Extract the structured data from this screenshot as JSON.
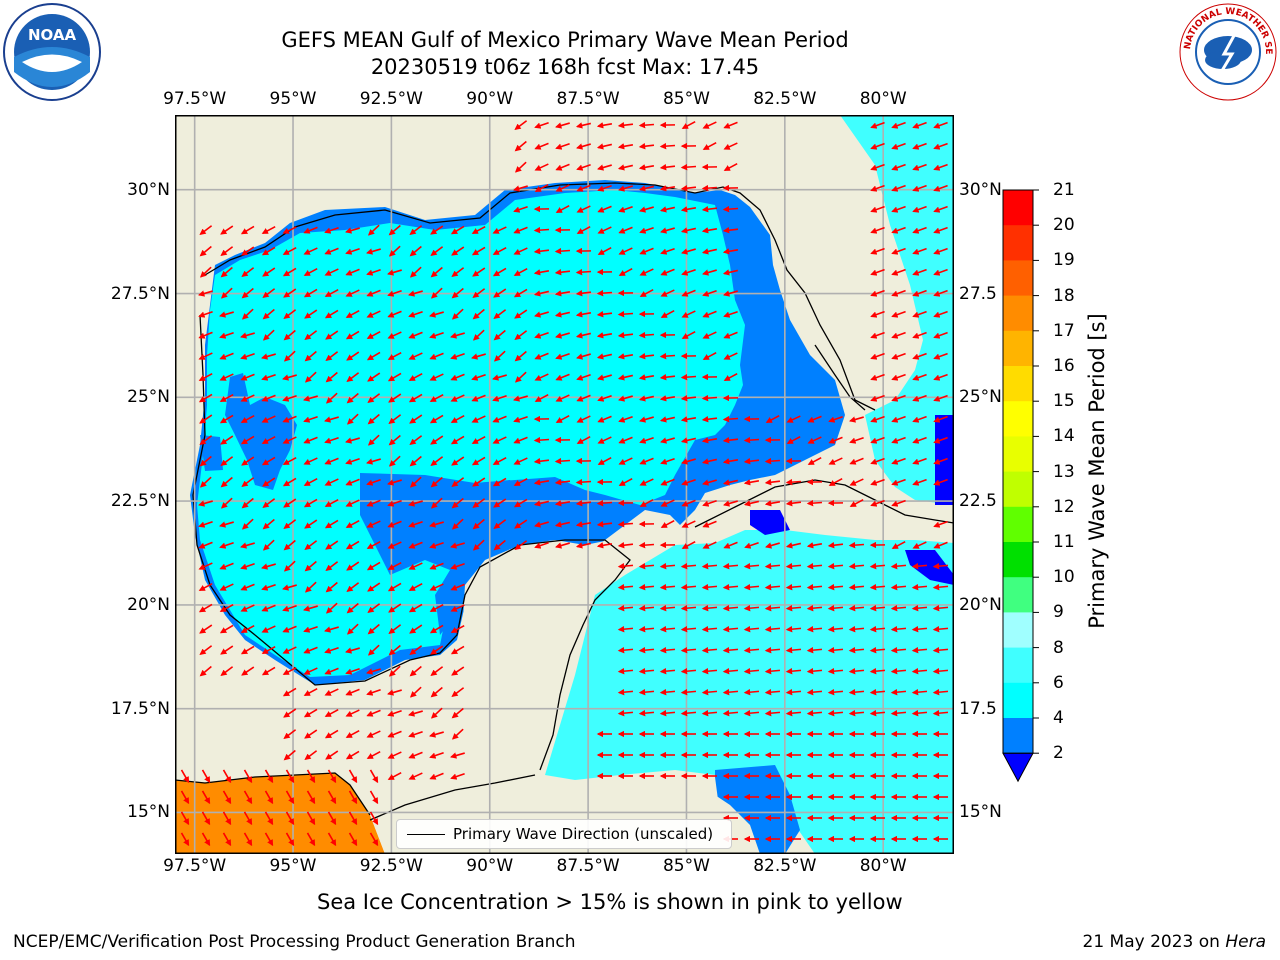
{
  "title_line1": "GEFS MEAN Gulf of Mexico Primary Wave Mean Period",
  "title_line2": "20230519 t06z 168h fcst   Max: 17.45",
  "lon_labels": [
    "97.5°W",
    "95°W",
    "92.5°W",
    "90°W",
    "87.5°W",
    "85°W",
    "82.5°W",
    "80°W"
  ],
  "lon_values": [
    -97.5,
    -95,
    -92.5,
    -90,
    -87.5,
    -85,
    -82.5,
    -80
  ],
  "lat_labels_left": [
    "30°N",
    "27.5°N",
    "25°N",
    "22.5°N",
    "20°N",
    "17.5°N",
    "15°N"
  ],
  "lat_labels_right": [
    "30°N",
    "27.5",
    "25°N",
    "22.5",
    "20°N",
    "17.5",
    "15°N"
  ],
  "lat_values": [
    30,
    27.5,
    25,
    22.5,
    20,
    17.5,
    15
  ],
  "map_extent": {
    "lon": [
      -98,
      -78.2
    ],
    "lat": [
      14,
      31.8
    ]
  },
  "colorbar": {
    "label": "Primary Wave Mean Period [s]",
    "ticks": [
      "21",
      "20",
      "19",
      "18",
      "17",
      "16",
      "15",
      "14",
      "13",
      "12",
      "11",
      "10",
      "9",
      "8",
      "6",
      "4",
      "2"
    ],
    "bounds": [
      2,
      4,
      6,
      8,
      9,
      10,
      11,
      12,
      13,
      14,
      15,
      16,
      17,
      18,
      19,
      20,
      21
    ],
    "colors": [
      "#0080ff",
      "#00ffff",
      "#40ffff",
      "#a0ffff",
      "#40ff80",
      "#00e000",
      "#60ff00",
      "#c0ff00",
      "#e8ff00",
      "#ffff00",
      "#ffdc00",
      "#ffb400",
      "#ff8c00",
      "#ff6000",
      "#ff3000",
      "#ff0000"
    ],
    "under_color": "#0000ff"
  },
  "colors": {
    "land": "#efeedc",
    "ocean_main": "#00ffff",
    "ocean_light": "#40ffff",
    "ocean_dark": "#0080ff",
    "deep": "#0000ff",
    "swell": "#ff8c00",
    "arrow": "#ff0000",
    "grid": "#b0b0b0"
  },
  "legend_label": "Primary Wave Direction (unscaled)",
  "sea_ice_note": "Sea Ice Concentration > 15% is shown in pink to yellow",
  "footer_left": "NCEP/EMC/Verification Post Processing Product Generation Branch",
  "footer_right_prefix": "21 May 2023 on ",
  "footer_right_host": "Hera",
  "logos": {
    "left": "NOAA",
    "right": "NATIONAL WEATHER SERVICE"
  }
}
